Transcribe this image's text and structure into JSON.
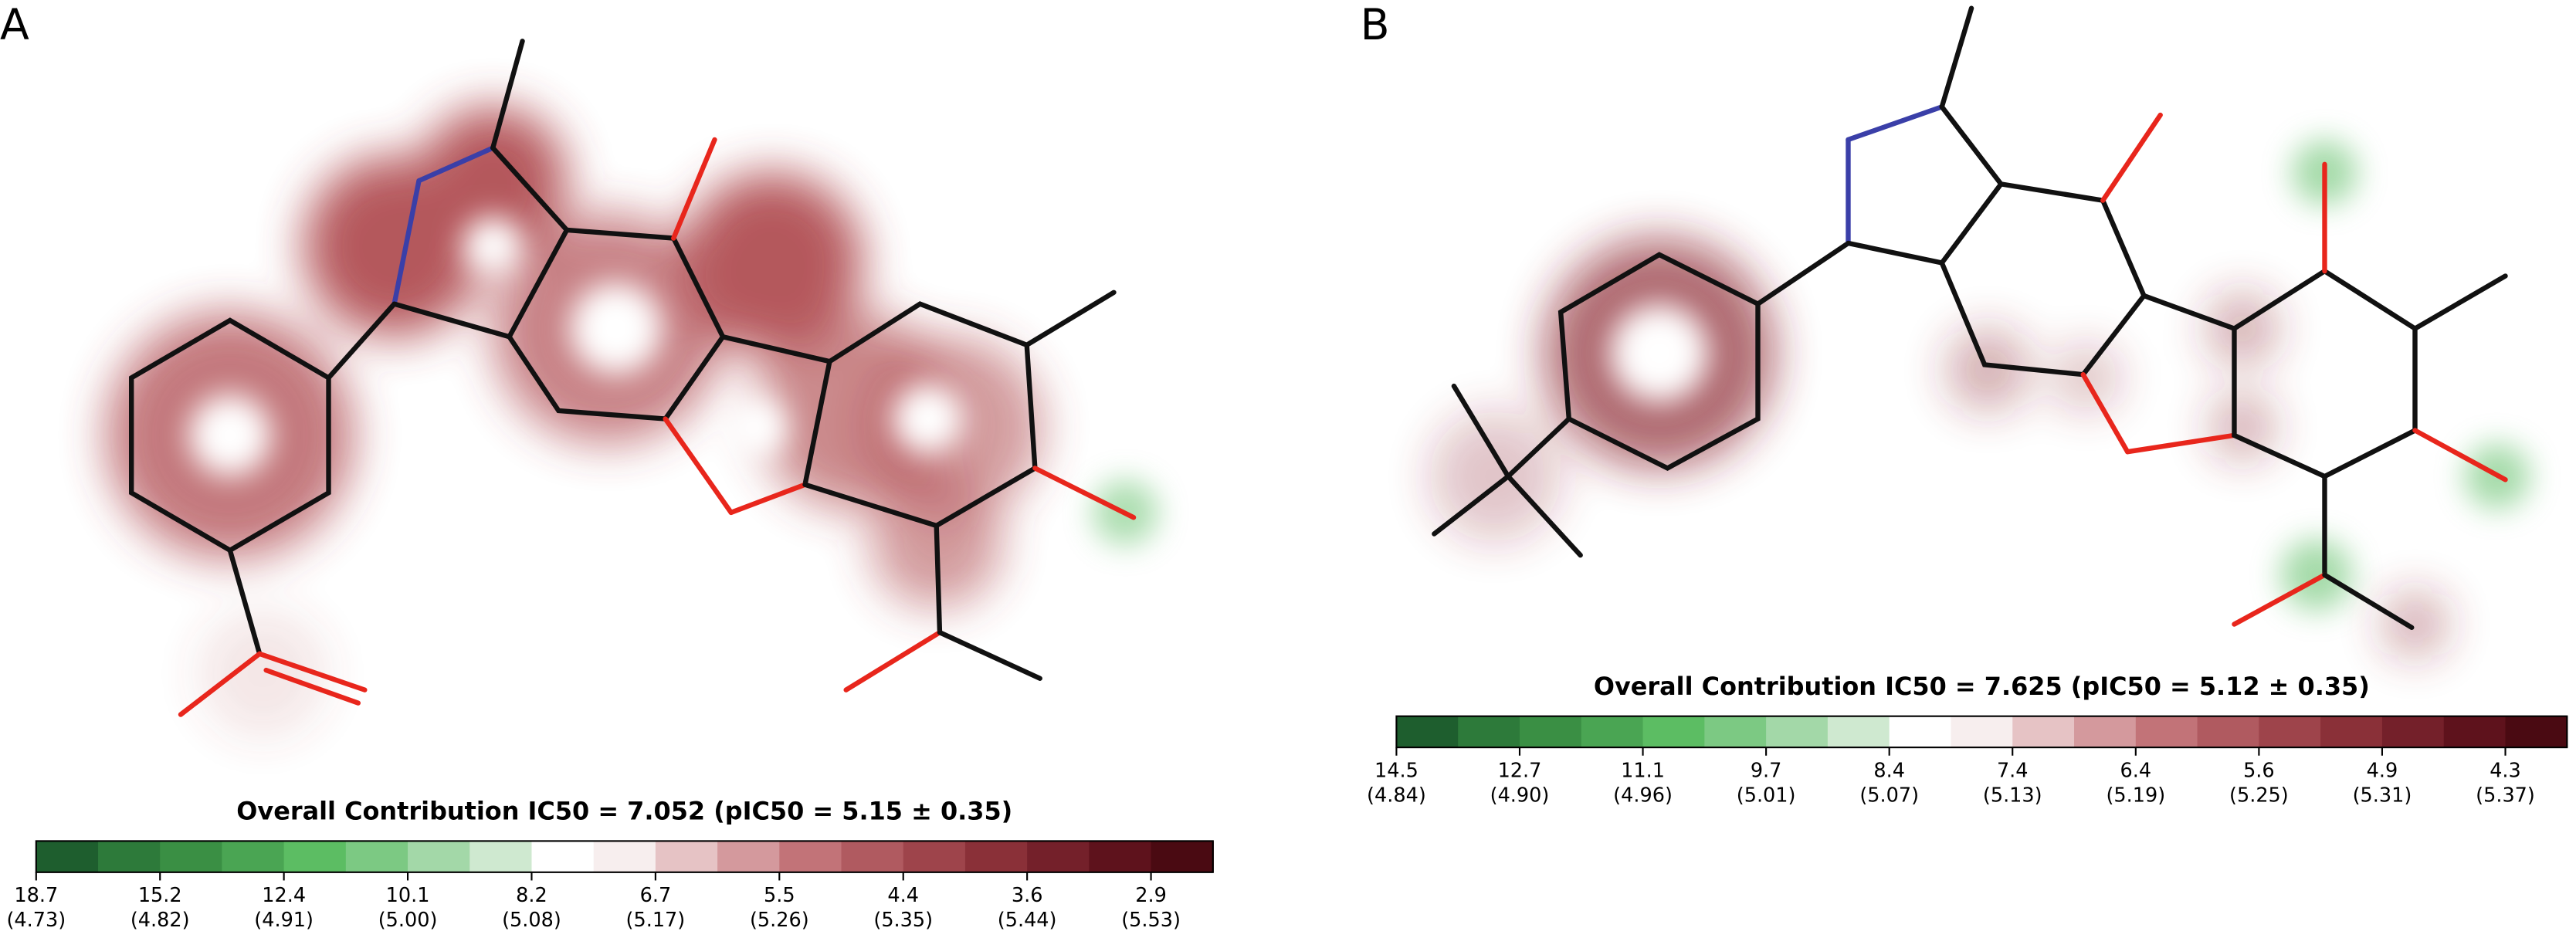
{
  "panels": [
    {
      "label": "A",
      "colorbar": {
        "title": "Overall Contribution IC50 = 7.052 (pIC50 = 5.15 ± 0.35)",
        "colors": [
          "#1e5e2e",
          "#2d7a3a",
          "#3a8f44",
          "#4aa553",
          "#5cbd63",
          "#7cc983",
          "#a3d8a8",
          "#cfe9d0",
          "#ffffff",
          "#f7eeee",
          "#e6c3c5",
          "#d4999d",
          "#c27378",
          "#b05a60",
          "#9e444b",
          "#8a3038",
          "#74202a",
          "#5e121c",
          "#4a0a12"
        ],
        "ticks": [
          [
            "18.7",
            "(4.73)"
          ],
          [
            "15.2",
            "(4.82)"
          ],
          [
            "12.4",
            "(4.91)"
          ],
          [
            "10.1",
            "(5.00)"
          ],
          [
            "8.2",
            "(5.08)"
          ],
          [
            "6.7",
            "(5.17)"
          ],
          [
            "5.5",
            "(5.26)"
          ],
          [
            "4.4",
            "(5.35)"
          ],
          [
            "3.6",
            "(5.44)"
          ],
          [
            "2.9",
            "(5.53)"
          ]
        ]
      }
    },
    {
      "label": "B",
      "colorbar": {
        "title": "Overall Contribution IC50 = 7.625 (pIC50 = 5.12 ± 0.35)",
        "colors": [
          "#1e5e2e",
          "#2d7a3a",
          "#3a8f44",
          "#4aa553",
          "#5cbd63",
          "#7cc983",
          "#a3d8a8",
          "#cfe9d0",
          "#ffffff",
          "#f7eeee",
          "#e6c3c5",
          "#d4999d",
          "#c27378",
          "#b05a60",
          "#9e444b",
          "#8a3038",
          "#74202a",
          "#5e121c",
          "#4a0a12"
        ],
        "ticks": [
          [
            "14.5",
            "(4.84)"
          ],
          [
            "12.7",
            "(4.90)"
          ],
          [
            "11.1",
            "(4.96)"
          ],
          [
            "9.7",
            "(5.01)"
          ],
          [
            "8.4",
            "(5.07)"
          ],
          [
            "7.4",
            "(5.13)"
          ],
          [
            "6.4",
            "(5.19)"
          ],
          [
            "5.6",
            "(5.25)"
          ],
          [
            "4.9",
            "(5.31)"
          ],
          [
            "4.3",
            "(5.37)"
          ]
        ]
      }
    }
  ]
}
